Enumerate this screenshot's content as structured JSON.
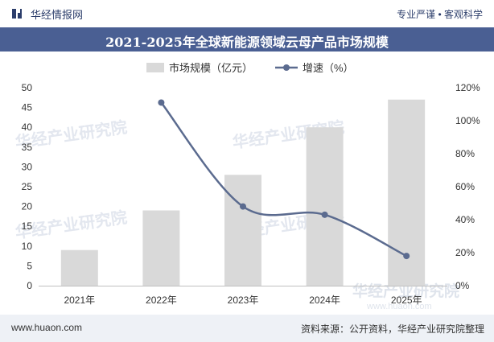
{
  "header": {
    "brand": "华经情报网",
    "slogan": "专业严谨 • 客观科学",
    "title": "2021-2025年全球新能源领域云母产品市场规模",
    "brand_color": "#4a5f93"
  },
  "footer": {
    "url": "www.huaon.com",
    "source": "资料来源：公开资料，华经产业研究院整理"
  },
  "watermark": {
    "text": "华经产业研究院",
    "sub": "www.huaon.com"
  },
  "chart_data": {
    "type": "bar",
    "categories": [
      "2021年",
      "2022年",
      "2023年",
      "2024年",
      "2025年"
    ],
    "series": [
      {
        "name": "市场规模（亿元）",
        "type": "bar",
        "axis": "left",
        "color": "#d9d9d9",
        "values": [
          9,
          19,
          28,
          40,
          47
        ]
      },
      {
        "name": "增速（%）",
        "type": "line",
        "axis": "right",
        "color": "#5b6b8f",
        "values": [
          null,
          111,
          48,
          43,
          18
        ]
      }
    ],
    "y_left": {
      "min": 0,
      "max": 50,
      "ticks": [
        "0",
        "5",
        "10",
        "15",
        "20",
        "25",
        "30",
        "35",
        "40",
        "45",
        "50"
      ]
    },
    "y_right": {
      "min": 0,
      "max": 120,
      "ticks": [
        "0%",
        "20%",
        "40%",
        "60%",
        "80%",
        "100%",
        "120%"
      ]
    },
    "legend_position": "top",
    "grid": false
  }
}
